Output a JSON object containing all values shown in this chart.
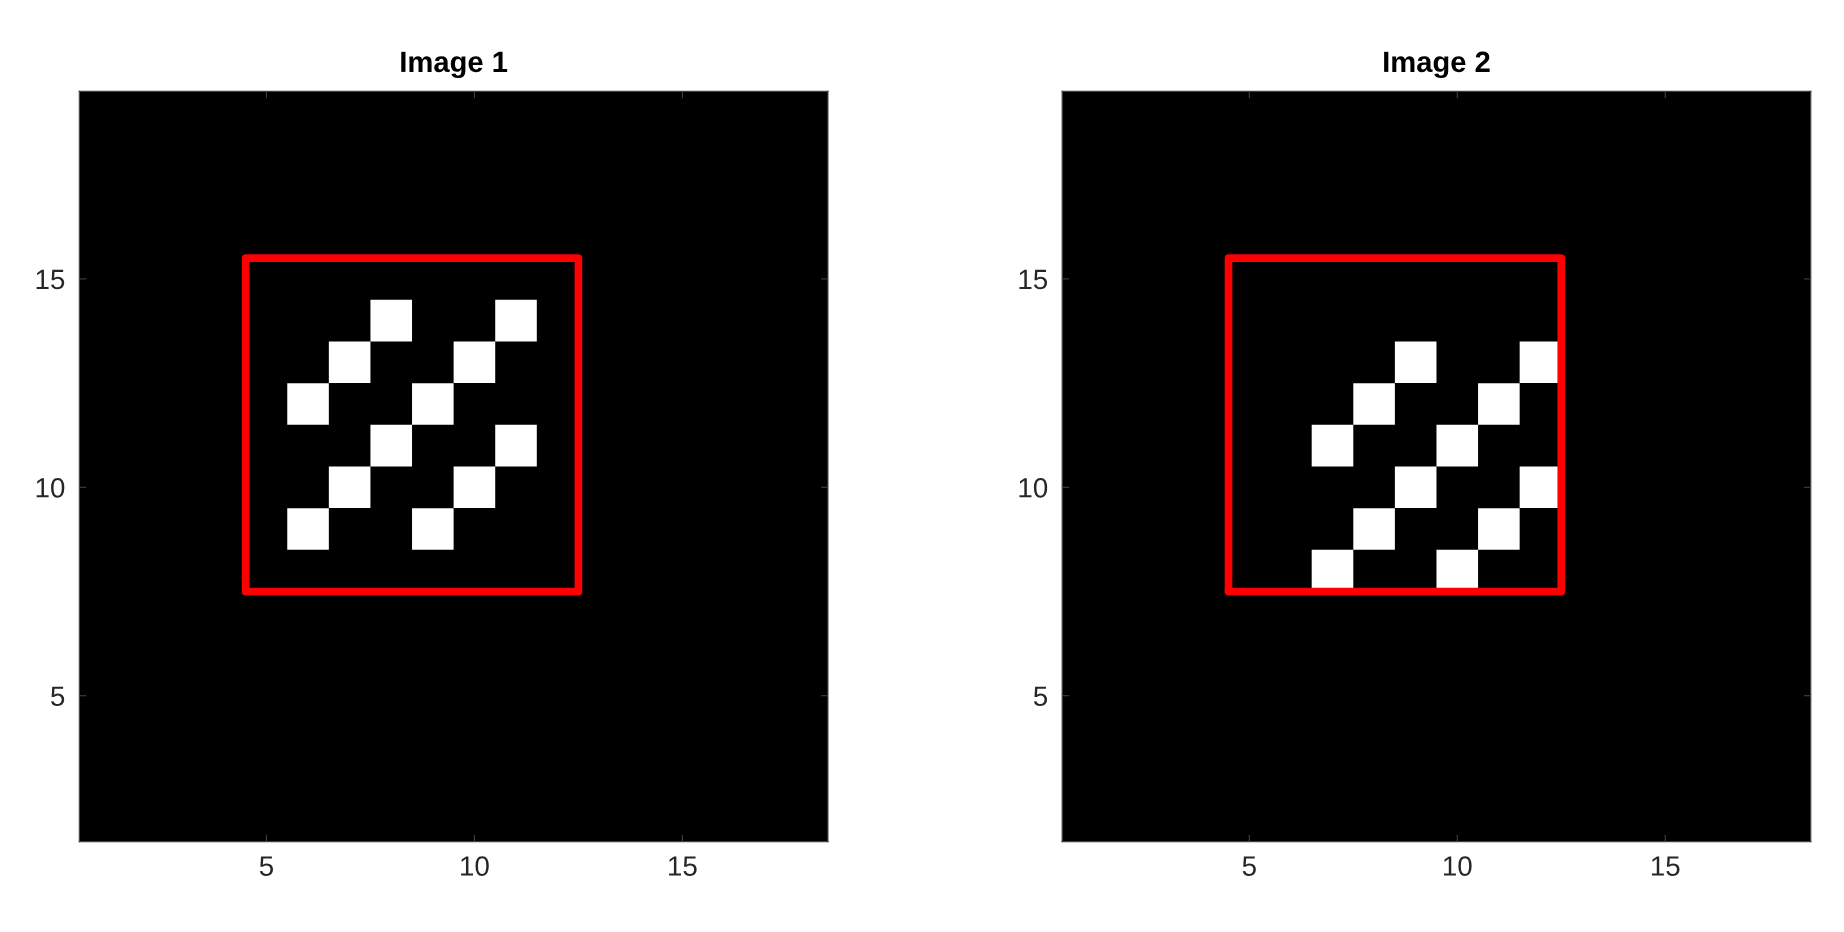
{
  "chart_data": [
    {
      "type": "scatter",
      "title": "Image 1",
      "xlim": [
        0.5,
        18.5
      ],
      "xticks": [
        5,
        10,
        15
      ],
      "ylim": [
        1.5,
        19.5
      ],
      "yticks": [
        5,
        10,
        15
      ],
      "bands": [
        {
          "axis": "x",
          "from": 0.5,
          "to": 18.5,
          "color": "#000000"
        }
      ],
      "series": [
        {
          "marker": "square",
          "color": "#ffffff",
          "x": [
            8,
            11,
            7,
            10,
            6,
            9,
            8,
            11,
            7,
            10,
            6,
            9
          ],
          "values": [
            14,
            14,
            13,
            13,
            12,
            12,
            11,
            11,
            10,
            10,
            9,
            9
          ]
        },
        {
          "type": "line",
          "marker": "none",
          "color": "#ff0000",
          "x": [
            4.5,
            4.5,
            12.5,
            12.5
          ],
          "values": [
            7.5,
            15.5,
            15.5,
            7.5
          ]
        },
        {
          "type": "line",
          "marker": "none",
          "color": "#ff0000",
          "x": [
            4.5,
            12.5
          ],
          "values": [
            7.5,
            7.5
          ]
        }
      ]
    },
    {
      "type": "scatter",
      "title": "Image 2",
      "xlim": [
        0.5,
        18.5
      ],
      "xticks": [
        5,
        10,
        15
      ],
      "ylim": [
        1.5,
        19.5
      ],
      "yticks": [
        5,
        10,
        15
      ],
      "bands": [
        {
          "axis": "x",
          "from": 0.5,
          "to": 18.5,
          "color": "#000000"
        }
      ],
      "series": [
        {
          "marker": "square",
          "color": "#ffffff",
          "x": [
            9,
            12,
            8,
            11,
            7,
            10,
            9,
            12,
            8,
            11,
            7,
            10
          ],
          "values": [
            13,
            13,
            12,
            12,
            11,
            11,
            10,
            10,
            9,
            9,
            8,
            8
          ]
        },
        {
          "type": "line",
          "marker": "none",
          "color": "#ff0000",
          "x": [
            4.5,
            4.5,
            12.5,
            12.5
          ],
          "values": [
            7.5,
            15.5,
            15.5,
            7.5
          ]
        },
        {
          "type": "line",
          "marker": "none",
          "color": "#ff0000",
          "x": [
            4.5,
            12.5
          ],
          "values": [
            7.5,
            7.5
          ]
        }
      ]
    }
  ]
}
